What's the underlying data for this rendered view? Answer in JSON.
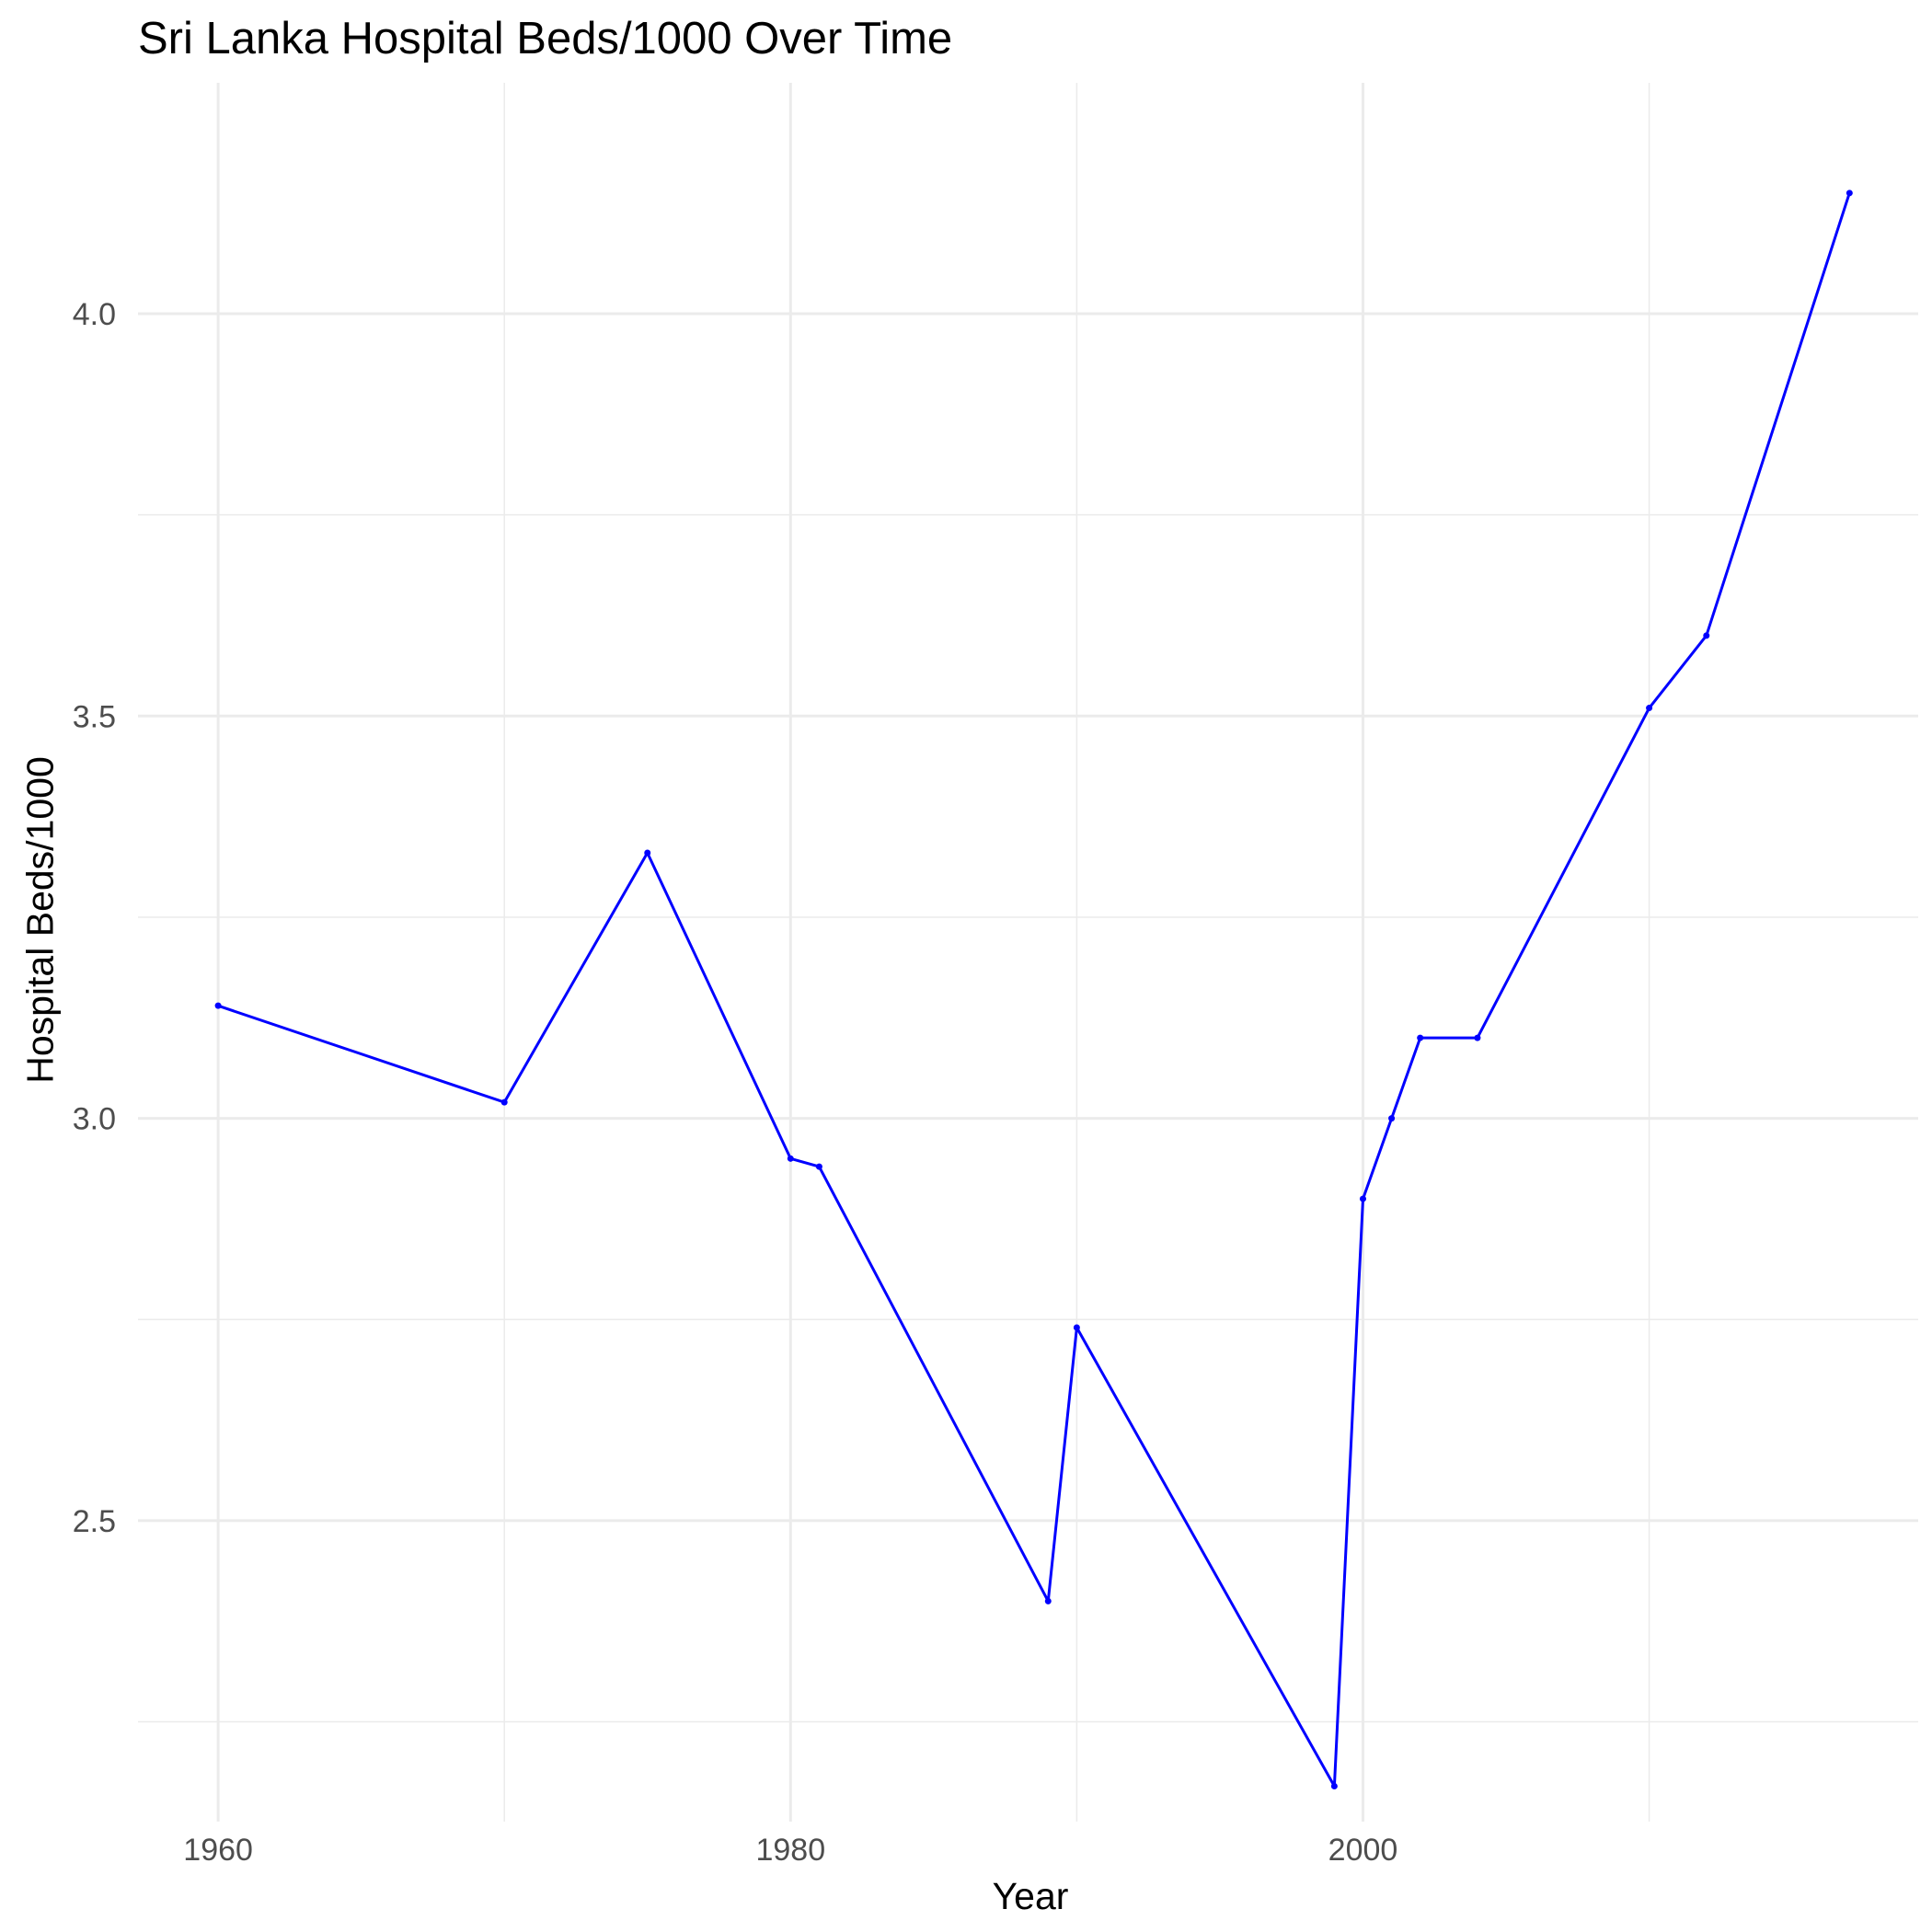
{
  "chart_data": {
    "type": "line",
    "title": "Sri Lanka Hospital Beds/1000 Over Time",
    "xlabel": "Year",
    "ylabel": "Hospital Beds/1000",
    "xlim": [
      1957.2,
      2019.4
    ],
    "ylim": [
      2.126,
      4.287
    ],
    "x_ticks": [
      1960,
      1980,
      2000
    ],
    "x_tick_labels": [
      "1960",
      "1980",
      "2000"
    ],
    "x_minor_ticks": [
      1970,
      1990,
      2010
    ],
    "y_ticks": [
      2.5,
      3.0,
      3.5,
      4.0
    ],
    "y_tick_labels": [
      "2.5",
      "3.0",
      "3.5",
      "4.0"
    ],
    "y_minor_ticks": [
      2.25,
      2.75,
      3.25,
      3.75
    ],
    "grid": true,
    "legend": "none",
    "line_color": "#0000ff",
    "grid_color": "#ebebeb",
    "series": [
      {
        "x": [
          1960,
          1970,
          1975,
          1980,
          1981,
          1989,
          1990,
          1999,
          2000,
          2001,
          2002,
          2004,
          2010,
          2012,
          2017
        ],
        "values": [
          3.14,
          3.02,
          3.33,
          2.95,
          2.94,
          2.4,
          2.74,
          2.17,
          2.9,
          3.0,
          3.1,
          3.1,
          3.51,
          3.6,
          4.15
        ]
      }
    ]
  }
}
